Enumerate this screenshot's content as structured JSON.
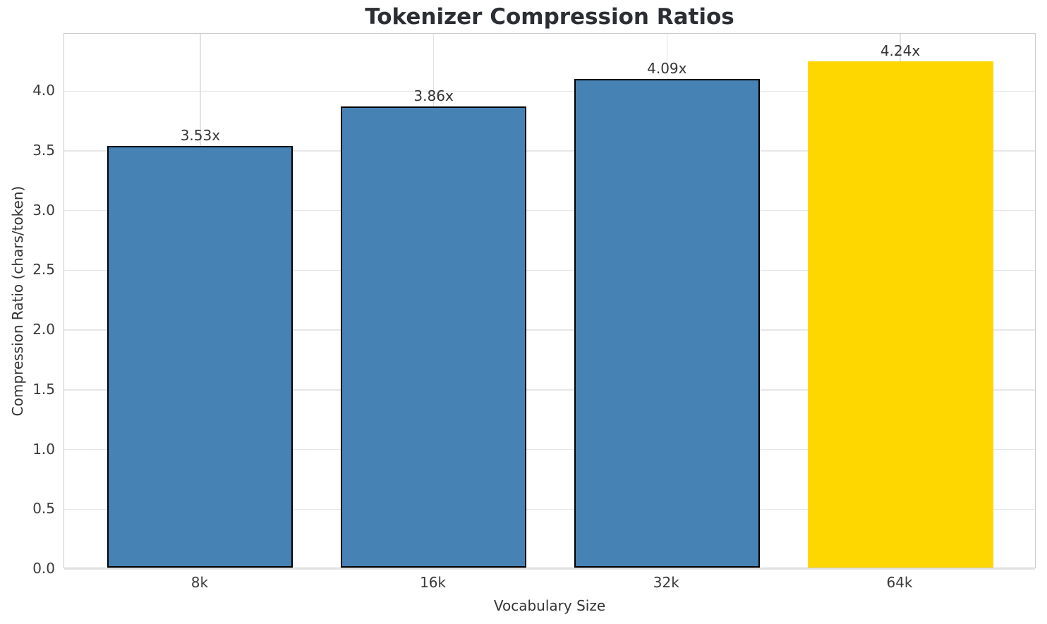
{
  "chart_data": {
    "type": "bar",
    "title": "Tokenizer Compression Ratios",
    "xlabel": "Vocabulary Size",
    "ylabel": "Compression Ratio (chars/token)",
    "categories": [
      "8k",
      "16k",
      "32k",
      "64k"
    ],
    "values": [
      3.53,
      3.86,
      4.09,
      4.24
    ],
    "bar_value_labels": [
      "3.53x",
      "3.86x",
      "4.09x",
      "4.24x"
    ],
    "bar_colors": [
      "#4682B4",
      "#4682B4",
      "#4682B4",
      "#FFD700"
    ],
    "bar_edge_colors": [
      "#000000",
      "#000000",
      "#000000",
      "none"
    ],
    "highlighted_category": "64k",
    "y_ticks": [
      0.0,
      0.5,
      1.0,
      1.5,
      2.0,
      2.5,
      3.0,
      3.5,
      4.0
    ],
    "y_tick_labels": [
      "0.0",
      "0.5",
      "1.0",
      "1.5",
      "2.0",
      "2.5",
      "3.0",
      "3.5",
      "4.0"
    ],
    "ylim": [
      0,
      4.48
    ],
    "grid": "both",
    "legend_position": "none",
    "colors": {
      "bar_default": "#4682B4",
      "bar_highlight": "#FFD700",
      "grid": "#e7e7e7",
      "spine": "#cccccc",
      "text": "#333333",
      "title": "#2b2e33"
    }
  }
}
